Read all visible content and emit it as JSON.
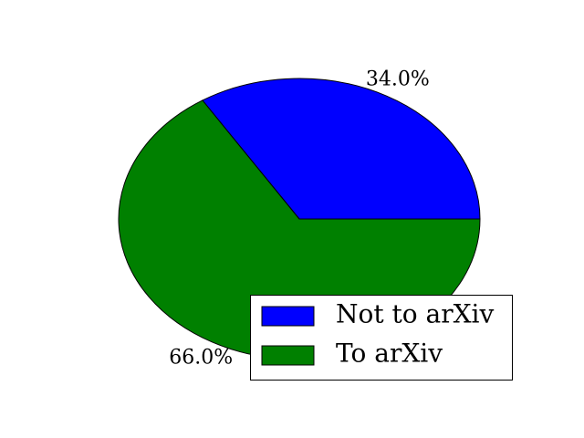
{
  "chart_data": {
    "type": "pie",
    "slices": [
      {
        "label": "Not to arXiv",
        "value": 34.0,
        "pct_label": "34.0%",
        "color": "#0000ff"
      },
      {
        "label": "To arXiv",
        "value": 66.0,
        "pct_label": "66.0%",
        "color": "#008000"
      }
    ],
    "start_angle_deg": 0,
    "direction": "counterclockwise",
    "legend": {
      "position": "lower-right"
    }
  }
}
